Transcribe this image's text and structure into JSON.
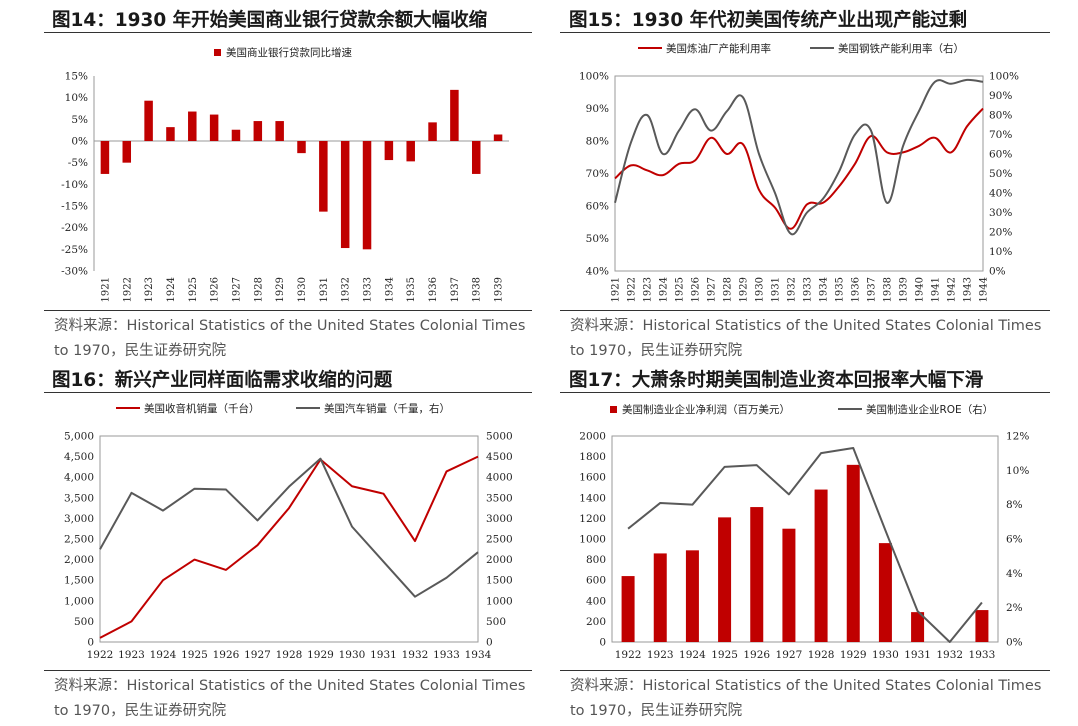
{
  "colors": {
    "red": "#c00000",
    "gray": "#595959"
  },
  "panels": [
    {
      "title": "图14：1930 年开始美国商业银行贷款余额大幅收缩",
      "source": "资料来源：Historical Statistics of the United States Colonial Times to 1970，民生证券研究院"
    },
    {
      "title": "图15：1930 年代初美国传统产业出现产能过剩",
      "source": "资料来源：Historical Statistics of the United States Colonial Times to 1970，民生证券研究院"
    },
    {
      "title": "图16：新兴产业同样面临需求收缩的问题",
      "source": "资料来源：Historical Statistics of the United States Colonial Times to 1970，民生证券研究院"
    },
    {
      "title": "图17：大萧条时期美国制造业资本回报率大幅下滑",
      "source": "资料来源：Historical Statistics of the United States Colonial Times to 1970，民生证券研究院"
    }
  ],
  "chart_data": [
    {
      "type": "bar",
      "title": "图14：1930 年开始美国商业银行贷款余额大幅收缩",
      "categories": [
        "1921",
        "1922",
        "1923",
        "1924",
        "1925",
        "1926",
        "1927",
        "1928",
        "1929",
        "1930",
        "1931",
        "1932",
        "1933",
        "1934",
        "1935",
        "1936",
        "1937",
        "1938",
        "1939"
      ],
      "series": [
        {
          "name": "美国商业银行贷款同比增速",
          "color": "#c00000",
          "values": [
            -7.6,
            -5.0,
            9.3,
            3.2,
            6.8,
            6.1,
            2.6,
            4.6,
            4.6,
            -2.8,
            -16.3,
            -24.7,
            -25.0,
            -4.4,
            -4.7,
            4.3,
            11.8,
            -7.6,
            1.5
          ]
        }
      ],
      "yaxis": {
        "min": -30,
        "max": 15,
        "step": 5,
        "ticks": [
          "-30%",
          "-25%",
          "-20%",
          "-15%",
          "-10%",
          "-5%",
          "0%",
          "5%",
          "10%",
          "15%"
        ]
      },
      "legend": "top-center"
    },
    {
      "type": "line",
      "title": "图15：1930 年代初美国传统产业出现产能过剩",
      "categories": [
        "1921",
        "1922",
        "1923",
        "1924",
        "1925",
        "1926",
        "1927",
        "1928",
        "1929",
        "1930",
        "1931",
        "1932",
        "1933",
        "1934",
        "1935",
        "1936",
        "1937",
        "1938",
        "1939",
        "1940",
        "1941",
        "1942",
        "1943",
        "1944"
      ],
      "series": [
        {
          "name": "美国炼油厂产能利用率",
          "color": "#c00000",
          "axis": "left",
          "values": [
            68.5,
            72.5,
            71,
            69.5,
            73,
            74,
            81,
            76,
            79,
            65,
            59.5,
            53,
            60.5,
            61,
            66,
            73,
            81.5,
            76.5,
            76.5,
            78.5,
            81,
            76.5,
            84.5,
            90
          ]
        },
        {
          "name": "美国钢铁产能利用率（右）",
          "color": "#595959",
          "axis": "right",
          "values": [
            35,
            66,
            80,
            60,
            72,
            83,
            72,
            82,
            89,
            60,
            40,
            19,
            30,
            37,
            51,
            70,
            72,
            35,
            64,
            82,
            97,
            96,
            98,
            97
          ]
        }
      ],
      "yaxis_left": {
        "min": 40,
        "max": 100,
        "step": 10,
        "ticks": [
          "40%",
          "50%",
          "60%",
          "70%",
          "80%",
          "90%",
          "100%"
        ]
      },
      "yaxis_right": {
        "min": 0,
        "max": 100,
        "step": 10,
        "ticks": [
          "0%",
          "10%",
          "20%",
          "30%",
          "40%",
          "50%",
          "60%",
          "70%",
          "80%",
          "90%",
          "100%"
        ]
      },
      "legend": "top-center"
    },
    {
      "type": "line",
      "title": "图16：新兴产业同样面临需求收缩的问题",
      "categories": [
        "1922",
        "1923",
        "1924",
        "1925",
        "1926",
        "1927",
        "1928",
        "1929",
        "1930",
        "1931",
        "1932",
        "1933",
        "1934"
      ],
      "series": [
        {
          "name": "美国收音机销量（千台）",
          "color": "#c00000",
          "axis": "left",
          "values": [
            100,
            500,
            1500,
            2000,
            1750,
            2350,
            3250,
            4430,
            3780,
            3600,
            2450,
            4140,
            4500
          ]
        },
        {
          "name": "美国汽车销量（千量，右）",
          "color": "#595959",
          "axis": "right",
          "values": [
            2250,
            3620,
            3190,
            3720,
            3700,
            2950,
            3770,
            4450,
            2800,
            1950,
            1100,
            1560,
            2180
          ]
        }
      ],
      "yaxis_left": {
        "min": 0,
        "max": 5000,
        "step": 500,
        "ticks": [
          "0",
          "500",
          "1,000",
          "1,500",
          "2,000",
          "2,500",
          "3,000",
          "3,500",
          "4,000",
          "4,500",
          "5,000"
        ]
      },
      "yaxis_right": {
        "min": 0,
        "max": 5000,
        "step": 500,
        "ticks": [
          "0",
          "500",
          "1000",
          "1500",
          "2000",
          "2500",
          "3000",
          "3500",
          "4000",
          "4500",
          "5000"
        ]
      },
      "legend": "top-center"
    },
    {
      "type": "bar+line",
      "title": "图17：大萧条时期美国制造业资本回报率大幅下滑",
      "categories": [
        "1922",
        "1923",
        "1924",
        "1925",
        "1926",
        "1927",
        "1928",
        "1929",
        "1930",
        "1931",
        "1932",
        "1933"
      ],
      "series": [
        {
          "name": "美国制造业企业净利润（百万美元）",
          "type": "bar",
          "color": "#c00000",
          "axis": "left",
          "values": [
            640,
            860,
            890,
            1210,
            1310,
            1100,
            1480,
            1720,
            960,
            290,
            0,
            310
          ]
        },
        {
          "name": "美国制造业企业ROE（右）",
          "type": "line",
          "color": "#595959",
          "axis": "right",
          "values": [
            6.6,
            8.1,
            8.0,
            10.2,
            10.3,
            8.6,
            11.0,
            11.3,
            6.5,
            1.8,
            0,
            2.3
          ]
        }
      ],
      "yaxis_left": {
        "min": 0,
        "max": 2000,
        "step": 200,
        "ticks": [
          "0",
          "200",
          "400",
          "600",
          "800",
          "1000",
          "1200",
          "1400",
          "1600",
          "1800",
          "2000"
        ]
      },
      "yaxis_right": {
        "min": 0,
        "max": 12,
        "step": 2,
        "ticks": [
          "0%",
          "2%",
          "4%",
          "6%",
          "8%",
          "10%",
          "12%"
        ]
      },
      "legend": "top-center"
    }
  ]
}
